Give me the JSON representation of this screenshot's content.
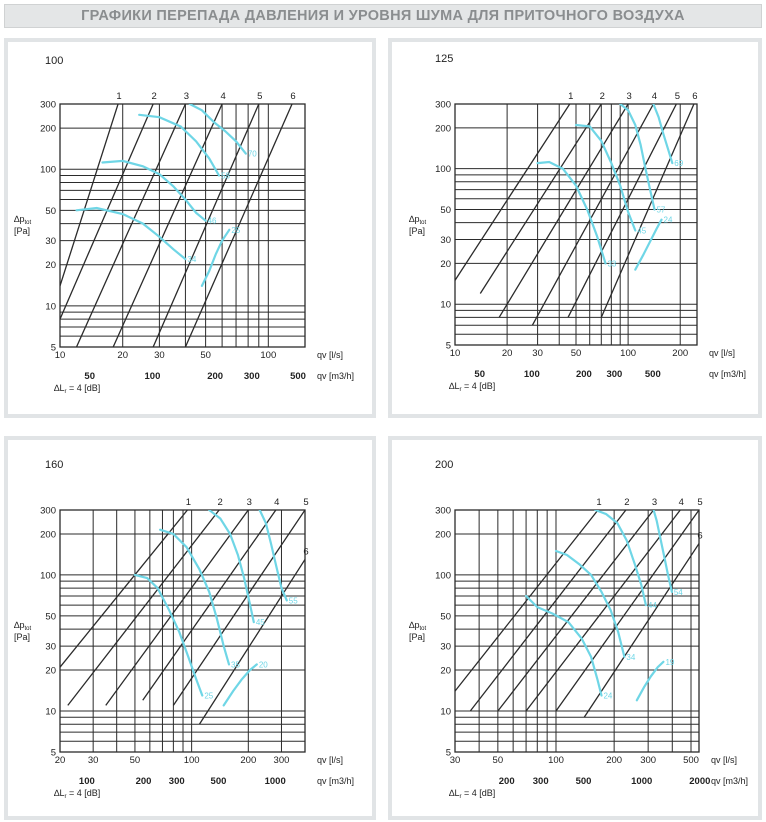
{
  "page_title": "ГРАФИКИ ПЕРЕПАДА ДАВЛЕНИЯ И УРОВНЯ ШУМА ДЛЯ ПРИТОЧНОГО ВОЗДУХА",
  "colors": {
    "grid": "#2b2b2b",
    "curve": "#6fd6e6",
    "header_bg": "#e4e6e7",
    "header_text": "#8a8d8f",
    "panel_border": "#e1e4e6"
  },
  "chart_data": [
    {
      "type": "line",
      "title": "100",
      "ylabel_top": "∆p",
      "ylabel_sub": "tot",
      "ylabel_unit": "[Pa]",
      "y_scale": "log",
      "ylim": [
        5,
        300
      ],
      "yticks": [
        5,
        10,
        20,
        30,
        50,
        100,
        200,
        300
      ],
      "x_ls": {
        "label": "qv [l/s]",
        "lim": [
          10,
          150
        ],
        "ticks": [
          10,
          20,
          30,
          50,
          100
        ]
      },
      "x_m3h": {
        "label": "qv [m3/h]",
        "ticks": [
          50,
          100,
          200,
          300,
          500
        ]
      },
      "noise_note": "∆L",
      "noise_note_sub": "r",
      "noise_note_rest": " = 4 [dB]",
      "position_lines": [
        {
          "label": "1",
          "q": [
            [
              19,
              300
            ],
            [
              10,
              14
            ]
          ]
        },
        {
          "label": "2",
          "q": [
            [
              28,
              300
            ],
            [
              10,
              8
            ]
          ]
        },
        {
          "label": "3",
          "q": [
            [
              40,
              300
            ],
            [
              12,
              5
            ]
          ]
        },
        {
          "label": "4",
          "q": [
            [
              60,
              300
            ],
            [
              18,
              5
            ]
          ]
        },
        {
          "label": "5",
          "q": [
            [
              90,
              300
            ],
            [
              28,
              5
            ]
          ]
        },
        {
          "label": "6",
          "q": [
            [
              130,
              300
            ],
            [
              40,
              5
            ]
          ]
        }
      ],
      "noise_curves": [
        {
          "points": [
            [
              12,
              50
            ],
            [
              15,
              52
            ],
            [
              20,
              47
            ],
            [
              25,
              40
            ],
            [
              30,
              32
            ],
            [
              35,
              26
            ],
            [
              40,
              22
            ]
          ]
        },
        {
          "points": [
            [
              16,
              112
            ],
            [
              20,
              115
            ],
            [
              25,
              105
            ],
            [
              30,
              92
            ],
            [
              35,
              75
            ],
            [
              40,
              60
            ],
            [
              45,
              48
            ],
            [
              50,
              42
            ]
          ]
        },
        {
          "points": [
            [
              24,
              250
            ],
            [
              30,
              240
            ],
            [
              38,
              205
            ],
            [
              45,
              160
            ],
            [
              52,
              120
            ],
            [
              58,
              90
            ]
          ]
        },
        {
          "points": [
            [
              42,
              300
            ],
            [
              48,
              270
            ],
            [
              55,
              220
            ],
            [
              62,
              190
            ],
            [
              70,
              160
            ],
            [
              78,
              130
            ]
          ]
        },
        {
          "points": [
            [
              48,
              14
            ],
            [
              52,
              18
            ],
            [
              56,
              24
            ],
            [
              60,
              30
            ],
            [
              65,
              36
            ]
          ]
        }
      ],
      "curve_labels": [
        "34",
        "46",
        "58",
        "70",
        "25"
      ]
    },
    {
      "type": "line",
      "title": "125",
      "ylabel_top": "∆p",
      "ylabel_sub": "tot",
      "ylabel_unit": "[Pa]",
      "y_scale": "log",
      "ylim": [
        5,
        300
      ],
      "yticks": [
        5,
        10,
        20,
        30,
        50,
        100,
        200,
        300
      ],
      "x_ls": {
        "label": "qv [l/s]",
        "lim": [
          10,
          250
        ],
        "ticks": [
          10,
          20,
          30,
          50,
          100,
          200
        ]
      },
      "x_m3h": {
        "label": "qv [m3/h]",
        "ticks": [
          50,
          100,
          200,
          300,
          500
        ]
      },
      "noise_note": "∆L",
      "noise_note_sub": "r",
      "noise_note_rest": " = 4 [dB]",
      "position_lines": [
        {
          "label": "1",
          "q": [
            [
              46,
              300
            ],
            [
              10,
              15
            ]
          ]
        },
        {
          "label": "2",
          "q": [
            [
              70,
              300
            ],
            [
              14,
              12
            ]
          ]
        },
        {
          "label": "3",
          "q": [
            [
              100,
              300
            ],
            [
              18,
              8
            ]
          ]
        },
        {
          "label": "4",
          "q": [
            [
              140,
              300
            ],
            [
              28,
              7
            ]
          ]
        },
        {
          "label": "5",
          "q": [
            [
              190,
              300
            ],
            [
              45,
              8
            ]
          ]
        },
        {
          "label": "6",
          "q": [
            [
              240,
              300
            ],
            [
              70,
              8
            ]
          ]
        }
      ],
      "noise_curves": [
        {
          "points": [
            [
              30,
              110
            ],
            [
              35,
              112
            ],
            [
              42,
              100
            ],
            [
              50,
              75
            ],
            [
              58,
              50
            ],
            [
              66,
              32
            ],
            [
              74,
              20
            ]
          ]
        },
        {
          "points": [
            [
              50,
              210
            ],
            [
              60,
              205
            ],
            [
              70,
              160
            ],
            [
              80,
              110
            ],
            [
              90,
              75
            ],
            [
              100,
              48
            ],
            [
              110,
              35
            ]
          ]
        },
        {
          "points": [
            [
              90,
              300
            ],
            [
              100,
              270
            ],
            [
              110,
              210
            ],
            [
              118,
              150
            ],
            [
              126,
              100
            ],
            [
              134,
              70
            ],
            [
              142,
              50
            ]
          ]
        },
        {
          "points": [
            [
              140,
              300
            ],
            [
              150,
              240
            ],
            [
              160,
              180
            ],
            [
              170,
              140
            ],
            [
              180,
              110
            ]
          ]
        },
        {
          "points": [
            [
              110,
              18
            ],
            [
              122,
              23
            ],
            [
              134,
              29
            ],
            [
              146,
              36
            ],
            [
              156,
              42
            ]
          ]
        }
      ],
      "curve_labels": [
        "33",
        "45",
        "57",
        "69",
        "24"
      ]
    },
    {
      "type": "line",
      "title": "160",
      "ylabel_top": "∆p",
      "ylabel_sub": "tot",
      "ylabel_unit": "[Pa]",
      "y_scale": "log",
      "ylim": [
        5,
        300
      ],
      "yticks": [
        5,
        10,
        20,
        30,
        50,
        100,
        200,
        300
      ],
      "x_ls": {
        "label": "qv [l/s]",
        "lim": [
          20,
          400
        ],
        "ticks": [
          20,
          30,
          50,
          100,
          200,
          300
        ]
      },
      "x_m3h": {
        "label": "qv [m3/h]",
        "ticks": [
          100,
          200,
          300,
          500,
          1000
        ]
      },
      "noise_note": "∆L",
      "noise_note_sub": "r",
      "noise_note_rest": " = 4 [dB]",
      "position_lines": [
        {
          "label": "1",
          "q": [
            [
              95,
              300
            ],
            [
              20,
              21
            ]
          ]
        },
        {
          "label": "2",
          "q": [
            [
              140,
              300
            ],
            [
              22,
              11
            ]
          ]
        },
        {
          "label": "3",
          "q": [
            [
              200,
              300
            ],
            [
              35,
              11
            ]
          ]
        },
        {
          "label": "4",
          "q": [
            [
              280,
              300
            ],
            [
              55,
              12
            ]
          ]
        },
        {
          "label": "5",
          "q": [
            [
              400,
              300
            ],
            [
              80,
              11
            ]
          ]
        },
        {
          "label": "6",
          "q": [
            [
              400,
              130
            ],
            [
              110,
              8
            ]
          ]
        }
      ],
      "noise_curves": [
        {
          "points": [
            [
              50,
              100
            ],
            [
              58,
              95
            ],
            [
              66,
              80
            ],
            [
              76,
              55
            ],
            [
              86,
              38
            ],
            [
              96,
              25
            ],
            [
              106,
              17
            ],
            [
              114,
              13
            ]
          ]
        },
        {
          "points": [
            [
              68,
              215
            ],
            [
              80,
              200
            ],
            [
              94,
              160
            ],
            [
              110,
              110
            ],
            [
              124,
              75
            ],
            [
              136,
              48
            ],
            [
              148,
              30
            ],
            [
              158,
              22
            ]
          ]
        },
        {
          "points": [
            [
              124,
              300
            ],
            [
              142,
              260
            ],
            [
              160,
              200
            ],
            [
              176,
              140
            ],
            [
              190,
              95
            ],
            [
              202,
              65
            ],
            [
              214,
              45
            ]
          ]
        },
        {
          "points": [
            [
              230,
              300
            ],
            [
              248,
              240
            ],
            [
              264,
              170
            ],
            [
              280,
              120
            ],
            [
              300,
              80
            ],
            [
              320,
              65
            ]
          ]
        },
        {
          "points": [
            [
              148,
              11
            ],
            [
              166,
              14
            ],
            [
              184,
              17
            ],
            [
              204,
              20
            ],
            [
              222,
              22
            ]
          ]
        }
      ],
      "curve_labels": [
        "25",
        "35",
        "45",
        "55",
        "20"
      ]
    },
    {
      "type": "line",
      "title": "200",
      "ylabel_top": "∆p",
      "ylabel_sub": "tot",
      "ylabel_unit": "[Pa]",
      "y_scale": "log",
      "ylim": [
        5,
        300
      ],
      "yticks": [
        5,
        10,
        20,
        30,
        50,
        100,
        200,
        300
      ],
      "x_ls": {
        "label": "qv [l/s]",
        "lim": [
          30,
          550
        ],
        "ticks": [
          30,
          50,
          100,
          200,
          300,
          500
        ]
      },
      "x_m3h": {
        "label": "qv [m3/h]",
        "ticks": [
          200,
          300,
          500,
          1000,
          2000
        ]
      },
      "noise_note": "∆L",
      "noise_note_sub": "r",
      "noise_note_rest": " = 4 [dB]",
      "position_lines": [
        {
          "label": "1",
          "q": [
            [
              165,
              300
            ],
            [
              30,
              14
            ]
          ]
        },
        {
          "label": "2",
          "q": [
            [
              230,
              300
            ],
            [
              36,
              10
            ]
          ]
        },
        {
          "label": "3",
          "q": [
            [
              320,
              300
            ],
            [
              50,
              10
            ]
          ]
        },
        {
          "label": "4",
          "q": [
            [
              440,
              300
            ],
            [
              70,
              10
            ]
          ]
        },
        {
          "label": "5",
          "q": [
            [
              550,
              300
            ],
            [
              100,
              10
            ]
          ]
        },
        {
          "label": "6",
          "q": [
            [
              550,
              170
            ],
            [
              140,
              9
            ]
          ]
        }
      ],
      "noise_curves": [
        {
          "points": [
            [
              70,
              70
            ],
            [
              80,
              58
            ],
            [
              96,
              52
            ],
            [
              116,
              45
            ],
            [
              136,
              34
            ],
            [
              152,
              25
            ],
            [
              164,
              17
            ],
            [
              172,
              13
            ]
          ]
        },
        {
          "points": [
            [
              100,
              150
            ],
            [
              114,
              140
            ],
            [
              132,
              120
            ],
            [
              152,
              100
            ],
            [
              172,
              75
            ],
            [
              192,
              55
            ],
            [
              210,
              38
            ],
            [
              226,
              25
            ]
          ]
        },
        {
          "points": [
            [
              160,
              300
            ],
            [
              182,
              280
            ],
            [
              208,
              240
            ],
            [
              232,
              180
            ],
            [
              256,
              120
            ],
            [
              276,
              85
            ],
            [
              292,
              60
            ]
          ]
        },
        {
          "points": [
            [
              320,
              300
            ],
            [
              332,
              250
            ],
            [
              346,
              190
            ],
            [
              362,
              140
            ],
            [
              380,
              100
            ],
            [
              398,
              75
            ]
          ]
        },
        {
          "points": [
            [
              262,
              12
            ],
            [
              286,
              15
            ],
            [
              310,
              18
            ],
            [
              336,
              21
            ],
            [
              360,
              23
            ]
          ]
        }
      ],
      "curve_labels": [
        "24",
        "34",
        "44",
        "54",
        "19"
      ]
    }
  ]
}
